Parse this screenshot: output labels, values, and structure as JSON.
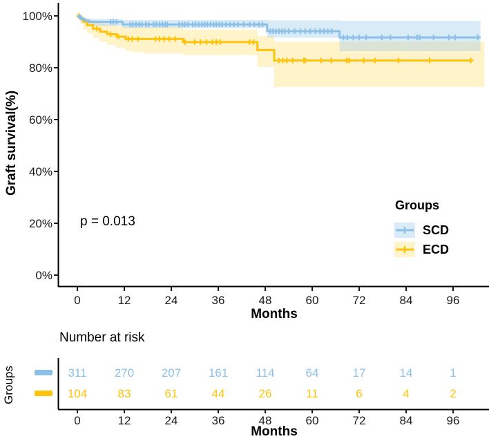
{
  "chart_data": {
    "type": "line",
    "subtype": "kaplan-meier-survival",
    "title": "",
    "xlabel": "Months",
    "ylabel": "Graft survival(%)",
    "annotation": "p = 0.013",
    "x_ticks": [
      0,
      12,
      24,
      36,
      48,
      60,
      72,
      84,
      96
    ],
    "y_tick_labels": [
      "100%",
      "80%",
      "60%",
      "40%",
      "20%",
      "0%"
    ],
    "y_tick_values": [
      100,
      80,
      60,
      40,
      20,
      0
    ],
    "xlim": [
      0,
      104
    ],
    "ylim": [
      0,
      100
    ],
    "grid": false,
    "legend": {
      "title": "Groups",
      "position": "right-middle"
    },
    "series": [
      {
        "name": "SCD",
        "steps": [
          [
            0,
            100
          ],
          [
            0.6,
            99.4
          ],
          [
            1.2,
            98.7
          ],
          [
            2,
            98.2
          ],
          [
            3,
            97.7
          ],
          [
            11.6,
            96.7
          ],
          [
            48.5,
            94.1
          ],
          [
            67,
            91.7
          ],
          [
            103,
            91.7
          ]
        ],
        "band_upper": [
          [
            0,
            100
          ],
          [
            0.6,
            99.8
          ],
          [
            1.2,
            99.3
          ],
          [
            2,
            99.0
          ],
          [
            3,
            98.8
          ],
          [
            11.6,
            98.4
          ],
          [
            48.5,
            98.3
          ],
          [
            67,
            98.1
          ],
          [
            103,
            98.1
          ]
        ],
        "band_lower": [
          [
            0,
            100
          ],
          [
            0.6,
            98.3
          ],
          [
            1.2,
            97.3
          ],
          [
            2,
            96.6
          ],
          [
            3,
            96.1
          ],
          [
            11.6,
            95.3
          ],
          [
            48.5,
            91.6
          ],
          [
            67,
            86.4
          ],
          [
            103,
            86.4
          ]
        ],
        "censor_months": [
          0.8,
          8.5,
          9.2,
          10,
          13.5,
          14.2,
          15,
          15.8,
          16.5,
          17.5,
          18.2,
          19.5,
          20.2,
          21,
          21.7,
          22.4,
          23,
          26,
          26.8,
          27.5,
          28.3,
          29.5,
          30.2,
          31,
          31.8,
          32.5,
          33.2,
          34,
          34.8,
          35.5,
          36.3,
          37,
          38,
          39,
          40,
          41,
          42.5,
          44,
          45.2,
          46.4,
          47.3,
          49.3,
          50,
          50.7,
          51.5,
          52.3,
          53,
          54,
          55.5,
          57,
          58.2,
          59.5,
          60.8,
          62,
          63,
          64,
          65,
          68,
          69,
          70.5,
          72,
          73.8,
          77.8,
          80,
          84.5,
          86.8,
          87.5,
          91,
          94.9,
          96.5,
          102.3
        ]
      },
      {
        "name": "ECD",
        "steps": [
          [
            0,
            100
          ],
          [
            0.7,
            99
          ],
          [
            1.5,
            97.8
          ],
          [
            2.5,
            96.4
          ],
          [
            4,
            95.1
          ],
          [
            5.8,
            93.9
          ],
          [
            7.6,
            92.9
          ],
          [
            10,
            92
          ],
          [
            12.3,
            91.1
          ],
          [
            27,
            89.9
          ],
          [
            46,
            86.8
          ],
          [
            50.3,
            82.8
          ],
          [
            100.8,
            82.8
          ]
        ],
        "band_upper": [
          [
            0,
            100
          ],
          [
            0.7,
            99.7
          ],
          [
            1.5,
            99
          ],
          [
            2.5,
            98.3
          ],
          [
            4,
            97.6
          ],
          [
            5.8,
            97
          ],
          [
            7.6,
            96.5
          ],
          [
            10,
            96
          ],
          [
            12.3,
            95.6
          ],
          [
            27,
            94.7
          ],
          [
            46,
            92.2
          ],
          [
            50.3,
            90
          ],
          [
            104,
            90
          ]
        ],
        "band_lower": [
          [
            0,
            100
          ],
          [
            0.7,
            96.8
          ],
          [
            1.5,
            94.8
          ],
          [
            2.5,
            93.2
          ],
          [
            4,
            91.5
          ],
          [
            5.8,
            90
          ],
          [
            7.6,
            88.8
          ],
          [
            10,
            87.6
          ],
          [
            12.3,
            86.5
          ],
          [
            14,
            86
          ],
          [
            17,
            85.5
          ],
          [
            27,
            84.9
          ],
          [
            46,
            80.3
          ],
          [
            50.3,
            72.5
          ],
          [
            104,
            72.5
          ]
        ],
        "censor_months": [
          0.4,
          5,
          8.5,
          10.5,
          13,
          14,
          15.5,
          20,
          21,
          22.2,
          23.5,
          25,
          27.5,
          30,
          31.5,
          33,
          34.5,
          35.5,
          36.5,
          44,
          45,
          51.5,
          52.5,
          53.5,
          55,
          57.9,
          58.2,
          62.3,
          64.9,
          68.8,
          69.4,
          73.2,
          76,
          82,
          90,
          100.5
        ]
      }
    ],
    "risk_table": {
      "title": "Number at risk",
      "ylabel": "Groups",
      "xlabel": "Months",
      "x_ticks": [
        0,
        12,
        24,
        36,
        48,
        60,
        72,
        84,
        96
      ],
      "rows": [
        {
          "name": "SCD",
          "values": [
            311,
            270,
            207,
            161,
            114,
            64,
            17,
            14,
            1
          ]
        },
        {
          "name": "ECD",
          "values": [
            104,
            83,
            61,
            44,
            26,
            11,
            6,
            4,
            2
          ]
        }
      ]
    }
  },
  "colors": {
    "scd_line": "#8BC0E8",
    "ecd_line": "#FFC30B",
    "scd_band": "rgba(139,192,232,0.32)",
    "ecd_band": "rgba(255,199,14,0.22)",
    "axis": "#000000",
    "tick_text": "#1a1a1a"
  }
}
